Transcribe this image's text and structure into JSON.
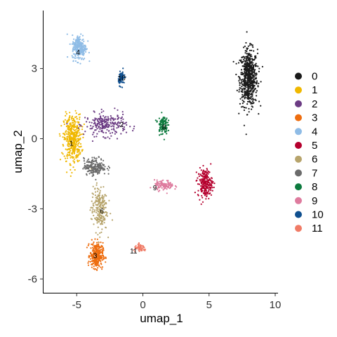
{
  "chart_data": {
    "type": "scatter",
    "title": "",
    "xlabel": "umap_1",
    "ylabel": "umap_2",
    "xlim": [
      -7.5,
      10.5
    ],
    "ylim": [
      -6.6,
      5.5
    ],
    "x_ticks": [
      -5,
      0,
      5,
      10
    ],
    "x_tick_labels": [
      "-5",
      "0",
      "5",
      "10"
    ],
    "y_ticks": [
      3,
      0,
      -3,
      -6
    ],
    "y_tick_labels": [
      "3",
      "0",
      "-3",
      "-6"
    ],
    "grid": false,
    "legend_position": "right",
    "clusters": [
      {
        "name": "0",
        "color": "#1a1a1a",
        "center": [
          8.0,
          2.6
        ],
        "spread": [
          0.55,
          1.0
        ],
        "n_points": 650,
        "label_at": [
          8.0,
          2.6
        ],
        "label_shown": false
      },
      {
        "name": "1",
        "color": "#f0b800",
        "center": [
          -5.3,
          0.0
        ],
        "spread": [
          0.55,
          0.85
        ],
        "n_points": 420,
        "label_at": [
          -5.4,
          -0.2
        ],
        "label_shown": true
      },
      {
        "name": "2",
        "color": "#6c3c84",
        "center": [
          -2.8,
          0.6
        ],
        "spread": [
          1.3,
          0.4
        ],
        "n_points": 240,
        "label_at": [
          -1.6,
          0.6
        ],
        "label_shown": true
      },
      {
        "name": "3",
        "color": "#ee6d0f",
        "center": [
          -3.5,
          -5.0
        ],
        "spread": [
          0.4,
          0.45
        ],
        "n_points": 320,
        "label_at": [
          -3.6,
          -5.0
        ],
        "label_shown": true
      },
      {
        "name": "4",
        "color": "#8fbce6",
        "center": [
          -4.8,
          3.9
        ],
        "spread": [
          0.45,
          0.45
        ],
        "n_points": 240,
        "label_at": [
          -4.9,
          3.7
        ],
        "label_shown": true
      },
      {
        "name": "5",
        "color": "#b5002e",
        "center": [
          4.7,
          -1.9
        ],
        "spread": [
          0.45,
          0.5
        ],
        "n_points": 230,
        "label_at": [
          4.7,
          -1.9
        ],
        "label_shown": false
      },
      {
        "name": "6",
        "color": "#b7a46c",
        "center": [
          -3.3,
          -3.0
        ],
        "spread": [
          0.5,
          0.8
        ],
        "n_points": 220,
        "label_at": [
          -3.1,
          -3.1
        ],
        "label_shown": true
      },
      {
        "name": "7",
        "color": "#6b6b6b",
        "center": [
          -3.6,
          -1.2
        ],
        "spread": [
          0.7,
          0.3
        ],
        "n_points": 200,
        "label_at": [
          -3.6,
          -1.2
        ],
        "label_shown": false
      },
      {
        "name": "8",
        "color": "#0c7a3e",
        "center": [
          1.5,
          0.6
        ],
        "spread": [
          0.3,
          0.35
        ],
        "n_points": 110,
        "label_at": [
          1.6,
          0.5
        ],
        "label_shown": true
      },
      {
        "name": "9",
        "color": "#de7b9e",
        "center": [
          1.6,
          -2.0
        ],
        "spread": [
          0.6,
          0.18
        ],
        "n_points": 110,
        "label_at": [
          0.9,
          -2.1
        ],
        "label_shown": true
      },
      {
        "name": "10",
        "color": "#0f4f8f",
        "center": [
          -1.6,
          2.6
        ],
        "spread": [
          0.2,
          0.25
        ],
        "n_points": 75,
        "label_at": [
          -1.6,
          2.6
        ],
        "label_shown": true
      },
      {
        "name": "11",
        "color": "#f07b66",
        "center": [
          -0.2,
          -4.7
        ],
        "spread": [
          0.4,
          0.12
        ],
        "n_points": 55,
        "label_at": [
          -0.7,
          -4.8
        ],
        "label_shown": true
      }
    ]
  }
}
